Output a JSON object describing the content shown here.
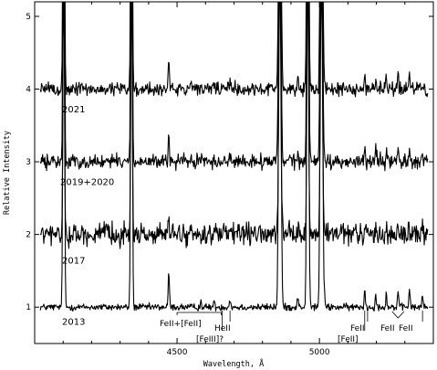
{
  "chart_data": {
    "type": "line",
    "xlabel": "Wavelength, Å",
    "ylabel": "Relative Intensity",
    "xlim": [
      4000,
      5400
    ],
    "ylim": [
      0.5,
      5.2
    ],
    "x_ticks": [
      4500,
      5000
    ],
    "y_ticks": [
      1,
      2,
      3,
      4,
      5
    ],
    "series": [
      {
        "name": "2013",
        "offset": 1.0,
        "noise": 0.03,
        "scale": 1.0
      },
      {
        "name": "2017",
        "offset": 2.0,
        "noise": 0.09,
        "scale": 0.45
      },
      {
        "name": "2019+2020",
        "offset": 3.0,
        "noise": 0.06,
        "scale": 0.75
      },
      {
        "name": "2021",
        "offset": 4.0,
        "noise": 0.06,
        "scale": 0.85
      }
    ],
    "emission_lines": [
      {
        "wl": 4102,
        "height": 8.0,
        "width": 2.5
      },
      {
        "wl": 4340,
        "height": 8.0,
        "width": 2.5
      },
      {
        "wl": 4471,
        "height": 0.5,
        "width": 2.0
      },
      {
        "wl": 4861,
        "height": 8.0,
        "width": 3.5
      },
      {
        "wl": 4959,
        "height": 8.0,
        "width": 3.0
      },
      {
        "wl": 5007,
        "height": 8.0,
        "width": 3.5
      },
      {
        "wl": 4686,
        "height": 0.08,
        "width": 3.0
      },
      {
        "wl": 5159,
        "height": 0.25,
        "width": 2.0
      },
      {
        "wl": 5198,
        "height": 0.18,
        "width": 2.0
      },
      {
        "wl": 5235,
        "height": 0.2,
        "width": 2.0
      },
      {
        "wl": 5276,
        "height": 0.22,
        "width": 2.0
      },
      {
        "wl": 5316,
        "height": 0.28,
        "width": 2.0
      },
      {
        "wl": 5362,
        "height": 0.15,
        "width": 2.0
      },
      {
        "wl": 4584,
        "height": 0.08,
        "width": 2.0
      },
      {
        "wl": 4629,
        "height": 0.08,
        "width": 2.0
      },
      {
        "wl": 4924,
        "height": 0.15,
        "width": 2.0
      },
      {
        "wl": 5018,
        "height": 0.12,
        "width": 2.0
      }
    ],
    "annotations": [
      {
        "text": "FeII+[FeII]",
        "wl": 4500
      },
      {
        "text": "[FeIII]?",
        "wl": 4658
      },
      {
        "text": "HeII",
        "wl": 4686
      },
      {
        "text": "FeII",
        "wl": 5169
      },
      {
        "text": "[FeII]",
        "wl": 5159
      },
      {
        "text": "FeII",
        "wl": 5276
      },
      {
        "text": "FeII",
        "wl": 5362
      }
    ]
  }
}
